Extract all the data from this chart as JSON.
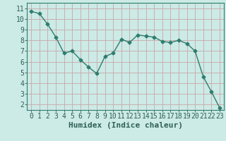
{
  "x": [
    0,
    1,
    2,
    3,
    4,
    5,
    6,
    7,
    8,
    9,
    10,
    11,
    12,
    13,
    14,
    15,
    16,
    17,
    18,
    19,
    20,
    21,
    22,
    23
  ],
  "y": [
    10.7,
    10.5,
    9.5,
    8.3,
    6.8,
    7.0,
    6.2,
    5.5,
    4.9,
    6.5,
    6.8,
    8.1,
    7.8,
    8.5,
    8.4,
    8.3,
    7.9,
    7.8,
    8.0,
    7.7,
    7.0,
    4.6,
    3.2,
    1.7
  ],
  "line_color": "#2e7d6e",
  "marker": "D",
  "bg_color": "#cceae6",
  "grid_color": "#b8d8d4",
  "axis_color": "#2e7d6e",
  "xlabel": "Humidex (Indice chaleur)",
  "xlim": [
    -0.5,
    23.5
  ],
  "ylim": [
    1.5,
    11.5
  ],
  "yticks": [
    2,
    3,
    4,
    5,
    6,
    7,
    8,
    9,
    10,
    11
  ],
  "xticks": [
    0,
    1,
    2,
    3,
    4,
    5,
    6,
    7,
    8,
    9,
    10,
    11,
    12,
    13,
    14,
    15,
    16,
    17,
    18,
    19,
    20,
    21,
    22,
    23
  ],
  "font_color": "#2e5f57",
  "font_size": 7,
  "label_font_size": 8
}
